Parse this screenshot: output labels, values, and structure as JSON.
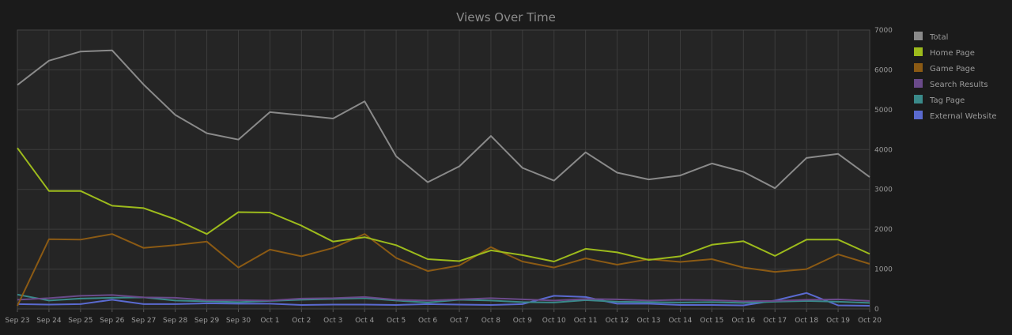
{
  "chart_data": {
    "type": "line",
    "title": "Views Over Time",
    "xlabel": "",
    "ylabel": "",
    "ylim": [
      0,
      7000
    ],
    "yticks": [
      0,
      1000,
      2000,
      3000,
      4000,
      5000,
      6000,
      7000
    ],
    "grid": true,
    "legend_position": "right",
    "categories": [
      "Sep 23",
      "Sep 24",
      "Sep 25",
      "Sep 26",
      "Sep 27",
      "Sep 28",
      "Sep 29",
      "Sep 30",
      "Oct 1",
      "Oct 2",
      "Oct 3",
      "Oct 4",
      "Oct 5",
      "Oct 6",
      "Oct 7",
      "Oct 8",
      "Oct 9",
      "Oct 10",
      "Oct 11",
      "Oct 12",
      "Oct 13",
      "Oct 14",
      "Oct 15",
      "Oct 16",
      "Oct 17",
      "Oct 18",
      "Oct 19",
      "Oct 20"
    ],
    "series": [
      {
        "name": "Total",
        "color": "#8a8a8a",
        "values": [
          5620,
          6230,
          6460,
          6490,
          5630,
          4870,
          4410,
          4250,
          4940,
          4860,
          4780,
          5210,
          3830,
          3180,
          3580,
          4340,
          3540,
          3220,
          3930,
          3420,
          3250,
          3350,
          3650,
          3440,
          3030,
          3790,
          3890,
          3310
        ]
      },
      {
        "name": "Home Page",
        "color": "#9dbb1c",
        "values": [
          4040,
          2960,
          2960,
          2590,
          2530,
          2250,
          1880,
          2430,
          2420,
          2090,
          1690,
          1800,
          1600,
          1250,
          1200,
          1470,
          1350,
          1190,
          1510,
          1420,
          1230,
          1320,
          1610,
          1700,
          1330,
          1740,
          1740,
          1380
        ]
      },
      {
        "name": "Game Page",
        "color": "#8b5a14",
        "values": [
          80,
          1750,
          1740,
          1880,
          1530,
          1600,
          1690,
          1040,
          1490,
          1320,
          1530,
          1880,
          1280,
          950,
          1090,
          1550,
          1190,
          1040,
          1270,
          1110,
          1250,
          1180,
          1250,
          1040,
          930,
          1000,
          1370,
          1130
        ]
      },
      {
        "name": "Search Results",
        "color": "#6a4a8a",
        "values": [
          230,
          270,
          330,
          350,
          290,
          280,
          220,
          220,
          210,
          260,
          270,
          300,
          230,
          210,
          240,
          270,
          240,
          210,
          250,
          240,
          210,
          230,
          220,
          190,
          200,
          230,
          240,
          200
        ]
      },
      {
        "name": "Tag Page",
        "color": "#3a8a8a",
        "values": [
          360,
          210,
          260,
          280,
          290,
          210,
          190,
          170,
          200,
          230,
          250,
          270,
          210,
          160,
          230,
          210,
          170,
          160,
          220,
          180,
          170,
          160,
          170,
          150,
          180,
          200,
          180,
          150
        ]
      },
      {
        "name": "External Website",
        "color": "#5a6ad0",
        "values": [
          120,
          110,
          120,
          230,
          120,
          120,
          140,
          130,
          130,
          100,
          110,
          110,
          100,
          120,
          110,
          100,
          120,
          330,
          300,
          130,
          130,
          100,
          100,
          90,
          210,
          400,
          90,
          80
        ]
      }
    ]
  }
}
